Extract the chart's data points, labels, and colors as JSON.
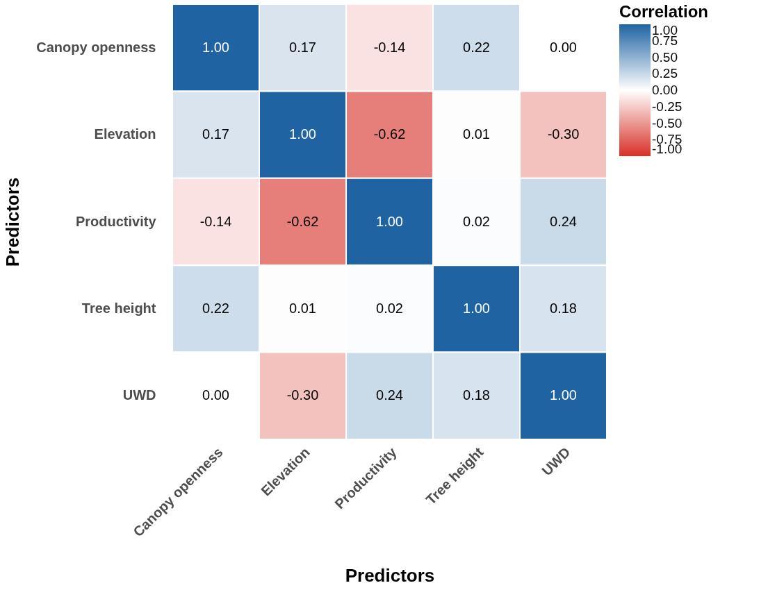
{
  "chart_data": {
    "type": "heatmap",
    "xlabel": "Predictors",
    "ylabel": "Predictors",
    "legend_title": "Correlation",
    "categories": [
      "Canopy openness",
      "Elevation",
      "Productivity",
      "Tree height",
      "UWD"
    ],
    "y_categories": [
      "Canopy openness",
      "Elevation",
      "Productivity",
      "Tree height",
      "UWD"
    ],
    "cells": [
      [
        1.0,
        0.17,
        -0.14,
        0.22,
        0.0
      ],
      [
        0.17,
        1.0,
        -0.62,
        0.01,
        -0.3
      ],
      [
        -0.14,
        -0.62,
        1.0,
        0.02,
        0.24
      ],
      [
        0.22,
        0.01,
        0.02,
        1.0,
        0.18
      ],
      [
        0.0,
        -0.3,
        0.24,
        0.18,
        1.0
      ]
    ],
    "cell_labels": [
      [
        "1.00",
        "0.17",
        "-0.14",
        "0.22",
        "0.00"
      ],
      [
        "0.17",
        "1.00",
        "-0.62",
        "0.01",
        "-0.30"
      ],
      [
        "-0.14",
        "-0.62",
        "1.00",
        "0.02",
        "0.24"
      ],
      [
        "0.22",
        "0.01",
        "0.02",
        "1.00",
        "0.18"
      ],
      [
        "0.00",
        "-0.30",
        "0.24",
        "0.18",
        "1.00"
      ]
    ],
    "clim": [
      -1,
      1
    ],
    "colors": [
      "#d73027",
      "#ffffff",
      "#1f63a3"
    ],
    "cticks": [
      {
        "value": 1,
        "label": "1.00"
      },
      {
        "value": 0.75,
        "label": "0.75"
      },
      {
        "value": 0.5,
        "label": "0.50"
      },
      {
        "value": 0.25,
        "label": "0.25"
      },
      {
        "value": 0,
        "label": "0.00"
      },
      {
        "value": -0.25,
        "label": "-0.25"
      },
      {
        "value": -0.5,
        "label": "-0.50"
      },
      {
        "value": -0.75,
        "label": "-0.75"
      },
      {
        "value": -1,
        "label": "-1.00"
      }
    ]
  }
}
